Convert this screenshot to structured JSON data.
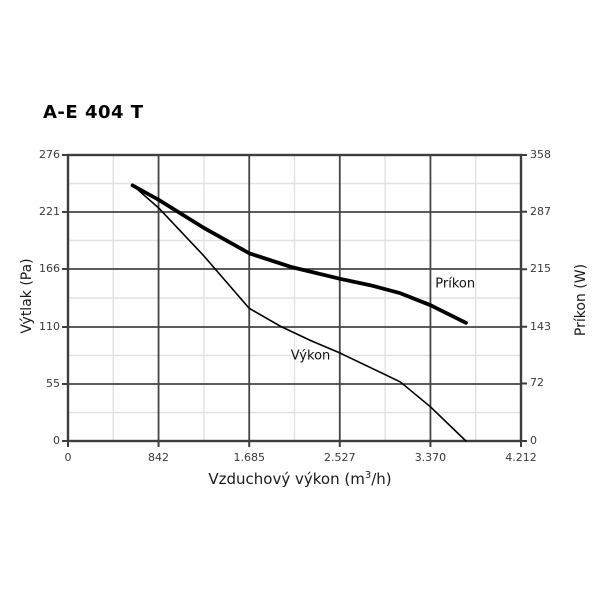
{
  "title": "A-E 404 T",
  "chart_data": {
    "type": "line",
    "title": "A-E 404 T",
    "xlabel": "Vzduchový výkon (m³/h)",
    "xlabel_parts": {
      "pre": "Vzduchový výkon (m",
      "sup": "3",
      "post": "/h)"
    },
    "ylabel_left": "Výtlak (Pa)",
    "ylabel_right": "Príkon (W)",
    "background_color": "#ffffff",
    "line_color": "#000000",
    "x_axis": {
      "min": 0,
      "max": 4212,
      "ticks": [
        0,
        842,
        1685,
        2527,
        3370,
        4212
      ],
      "tick_labels": [
        "0",
        "842",
        "1.685",
        "2.527",
        "3.370",
        "4.212"
      ]
    },
    "y_axis_left": {
      "min": 0,
      "max": 276,
      "ticks": [
        0,
        55,
        110,
        166,
        221,
        276
      ],
      "tick_labels": [
        "0",
        "55",
        "110",
        "166",
        "221",
        "276"
      ]
    },
    "y_axis_right": {
      "min": 0,
      "max": 358,
      "ticks": [
        0,
        72,
        143,
        215,
        287,
        358
      ],
      "tick_labels": [
        "0",
        "72",
        "143",
        "215",
        "287",
        "358"
      ]
    },
    "grid": {
      "major_color": "#454545",
      "minor_color": "#e2e2e2",
      "border_color": "#3d3d3d",
      "minor_at_midpoints": true
    },
    "series": [
      {
        "name": "Príkon",
        "axis": "right",
        "color": "#000000",
        "stroke_width": 3.8,
        "points": [
          [
            600,
            320
          ],
          [
            842,
            302
          ],
          [
            1260,
            267
          ],
          [
            1685,
            235
          ],
          [
            2070,
            218
          ],
          [
            2530,
            203
          ],
          [
            2810,
            195
          ],
          [
            3090,
            185
          ],
          [
            3370,
            170
          ],
          [
            3700,
            148
          ]
        ],
        "label_pos": {
          "x": 3600,
          "y": 196
        }
      },
      {
        "name": "Výkon",
        "axis": "left",
        "color": "#000000",
        "stroke_width": 1.6,
        "points": [
          [
            600,
            247
          ],
          [
            842,
            225
          ],
          [
            1260,
            179
          ],
          [
            1685,
            128
          ],
          [
            1970,
            111
          ],
          [
            2255,
            97
          ],
          [
            2527,
            85
          ],
          [
            3090,
            57
          ],
          [
            3370,
            33
          ],
          [
            3700,
            0
          ]
        ],
        "label_pos": {
          "x": 2255,
          "y": 82
        }
      }
    ]
  }
}
